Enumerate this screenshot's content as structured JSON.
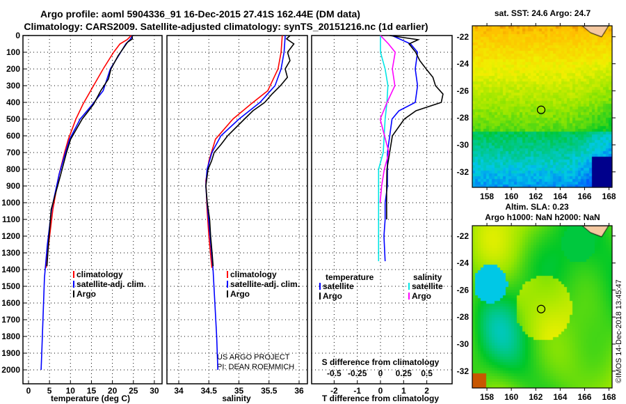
{
  "title_line1": "Argo profile: aoml 5904336_91 16-Dec-2015 27.41S 162.44E (DM data)",
  "title_line2": "Climatology: CARS2009. Satellite-adjusted climatology: synTS_20151216.nc (1d earlier)",
  "credit_line1": "US ARGO PROJECT",
  "credit_line2": "PI: DEAN ROEMMICH",
  "timestamp": "©IMOS 14-Dec-2018 13:45:47",
  "colors": {
    "climatology": "#ff0000",
    "satellite": "#0000ff",
    "argo": "#000000",
    "sal_satellite": "#00e5e5",
    "sal_argo": "#ff00ff"
  },
  "chart_data": [
    {
      "type": "line",
      "title": "",
      "xlabel": "temperature (deg C)",
      "ylabel": "",
      "xlim": [
        -1,
        31.5
      ],
      "ylim": [
        2000,
        0
      ],
      "xticks": [
        "0",
        "5",
        "10",
        "15",
        "20",
        "25",
        "30"
      ],
      "yticks": [
        "0",
        "100",
        "200",
        "300",
        "400",
        "500",
        "600",
        "700",
        "800",
        "900",
        "1000",
        "1100",
        "1200",
        "1300",
        "1400",
        "1500",
        "1600",
        "1700",
        "1800",
        "1900",
        "2000"
      ],
      "legend": [
        "climatology",
        "satellite-adj. clim.",
        "Argo"
      ],
      "grid": true,
      "series": [
        {
          "name": "climatology",
          "depth": [
            0,
            25,
            50,
            100,
            200,
            300,
            410,
            500,
            620,
            700,
            830,
            1040,
            1250,
            1390
          ],
          "values": [
            24.5,
            23.5,
            21.8,
            20.3,
            17.8,
            15.5,
            13,
            11.3,
            9.5,
            8.6,
            7.3,
            5.8,
            4.8,
            4.2
          ]
        },
        {
          "name": "satellite-adj. clim.",
          "depth": [
            0,
            25,
            50,
            120,
            200,
            330,
            410,
            500,
            620,
            700,
            830,
            1040,
            1250,
            1450,
            1660,
            1870,
            2000
          ],
          "values": [
            24.8,
            24.2,
            23.2,
            21.5,
            19.5,
            17.8,
            15.3,
            12.3,
            9.8,
            8.8,
            7.3,
            5.5,
            4.5,
            3.8,
            3.5,
            3.2,
            3.0
          ]
        },
        {
          "name": "Argo",
          "depth": [
            0,
            20,
            40,
            60,
            120,
            200,
            260,
            330,
            410,
            460,
            500,
            620,
            700,
            830,
            1040,
            1250,
            1380
          ],
          "values": [
            24.7,
            24.6,
            23.8,
            23.0,
            21.6,
            19.8,
            18.9,
            17.4,
            15.6,
            14.2,
            12.6,
            10.0,
            8.9,
            7.5,
            5.6,
            4.6,
            4.2
          ]
        }
      ]
    },
    {
      "type": "line",
      "xlabel": "salinity",
      "xlim": [
        33.8,
        36.15
      ],
      "ylim": [
        2000,
        0
      ],
      "xticks": [
        "34",
        "34.5",
        "35",
        "35.5",
        "36"
      ],
      "legend": [
        "climatology",
        "satellite-adj. clim.",
        "Argo"
      ],
      "grid": true,
      "series": [
        {
          "name": "climatology",
          "depth": [
            0,
            100,
            200,
            330,
            410,
            500,
            620,
            750,
            870,
            1040,
            1200,
            1390
          ],
          "values": [
            35.72,
            35.7,
            35.65,
            35.48,
            35.2,
            34.9,
            34.61,
            34.5,
            34.45,
            34.47,
            34.5,
            34.55
          ]
        },
        {
          "name": "satellite-adj. clim.",
          "depth": [
            0,
            100,
            200,
            300,
            400,
            500,
            600,
            700,
            800,
            900,
            1000,
            1200,
            1400,
            1600,
            1800,
            2000
          ],
          "values": [
            35.77,
            35.75,
            35.7,
            35.6,
            35.35,
            35.0,
            34.7,
            34.55,
            34.47,
            34.45,
            34.47,
            34.52,
            34.57,
            34.6,
            34.63,
            34.65
          ]
        },
        {
          "name": "Argo",
          "depth": [
            0,
            20,
            50,
            100,
            150,
            200,
            250,
            300,
            350,
            400,
            450,
            500,
            550,
            600,
            650,
            700,
            750,
            800,
            900,
            1000,
            1100,
            1200,
            1300,
            1380
          ],
          "values": [
            35.85,
            35.78,
            35.9,
            35.8,
            35.85,
            35.78,
            35.82,
            35.7,
            35.55,
            35.42,
            35.22,
            35.08,
            34.95,
            34.82,
            34.72,
            34.6,
            34.55,
            34.48,
            34.44,
            34.46,
            34.5,
            34.52,
            34.55,
            34.56
          ]
        }
      ]
    },
    {
      "type": "line",
      "xlabel": "T difference from climatology",
      "x2label": "S difference from climatology",
      "xlim": [
        -3,
        3.05
      ],
      "ylim": [
        2000,
        0
      ],
      "xticks": [
        "-2",
        "-1",
        "0",
        "1",
        "2"
      ],
      "x2ticks": [
        "-0.5",
        "-0.25",
        "0",
        "0.25",
        "0.5"
      ],
      "legend_temperature_title": "temperature",
      "legend_salinity_title": "salinity",
      "legend": [
        "satellite",
        "Argo",
        "satellite",
        "Argo"
      ],
      "grid": true,
      "series": [
        {
          "name": "T satellite",
          "axis": "T",
          "depth": [
            0,
            50,
            100,
            200,
            300,
            400,
            450,
            500,
            600,
            700,
            800,
            900,
            1000,
            1100,
            1200,
            1350
          ],
          "values": [
            0.5,
            1.3,
            1.6,
            1.5,
            1.6,
            1.5,
            0.8,
            0.5,
            0.4,
            0.3,
            0.3,
            0.3,
            0.2,
            0.2,
            0.15,
            0.2
          ]
        },
        {
          "name": "T Argo",
          "axis": "T",
          "depth": [
            0,
            25,
            50,
            100,
            150,
            200,
            250,
            300,
            350,
            400,
            450,
            500,
            600,
            700,
            800,
            900,
            1000,
            1100
          ],
          "values": [
            0.4,
            1.6,
            1.2,
            1.5,
            1.7,
            2.0,
            2.3,
            2.4,
            2.7,
            2.6,
            1.5,
            1.0,
            0.5,
            0.4,
            0.3,
            0.3,
            0.3,
            0.3
          ]
        },
        {
          "name": "S satellite",
          "axis": "S",
          "depth": [
            0,
            100,
            200,
            300,
            400,
            500,
            600,
            700,
            800,
            1000,
            1350
          ],
          "values": [
            0,
            0,
            0.05,
            0.08,
            0.07,
            0.05,
            0.04,
            0.03,
            -0.02,
            -0.02,
            -0.02
          ]
        },
        {
          "name": "S Argo",
          "axis": "S",
          "depth": [
            0,
            50,
            100,
            200,
            300,
            400,
            500,
            600,
            700,
            800,
            900,
            1000
          ],
          "values": [
            0.0,
            0.08,
            0.15,
            0.12,
            0.15,
            0.07,
            0.0,
            0.05,
            0.1,
            0.05,
            0.02,
            0.0
          ]
        }
      ]
    }
  ],
  "map_sst": {
    "title": "sat. SST: 24.6 Argo: 24.7",
    "xticks": [
      "158",
      "160",
      "162",
      "164",
      "166",
      "168"
    ],
    "yticks": [
      "-22",
      "-24",
      "-26",
      "-28",
      "-30",
      "-32"
    ],
    "argo_lon": 162.44,
    "argo_lat": -27.41
  },
  "map_sla": {
    "title1": "Altim. SLA: 0.23",
    "title2": "Argo h1000: NaN h2000: NaN",
    "xticks": [
      "158",
      "160",
      "162",
      "164",
      "166",
      "168"
    ],
    "yticks": [
      "-22",
      "-24",
      "-26",
      "-28",
      "-30",
      "-32"
    ],
    "argo_lon": 162.44,
    "argo_lat": -27.41
  }
}
